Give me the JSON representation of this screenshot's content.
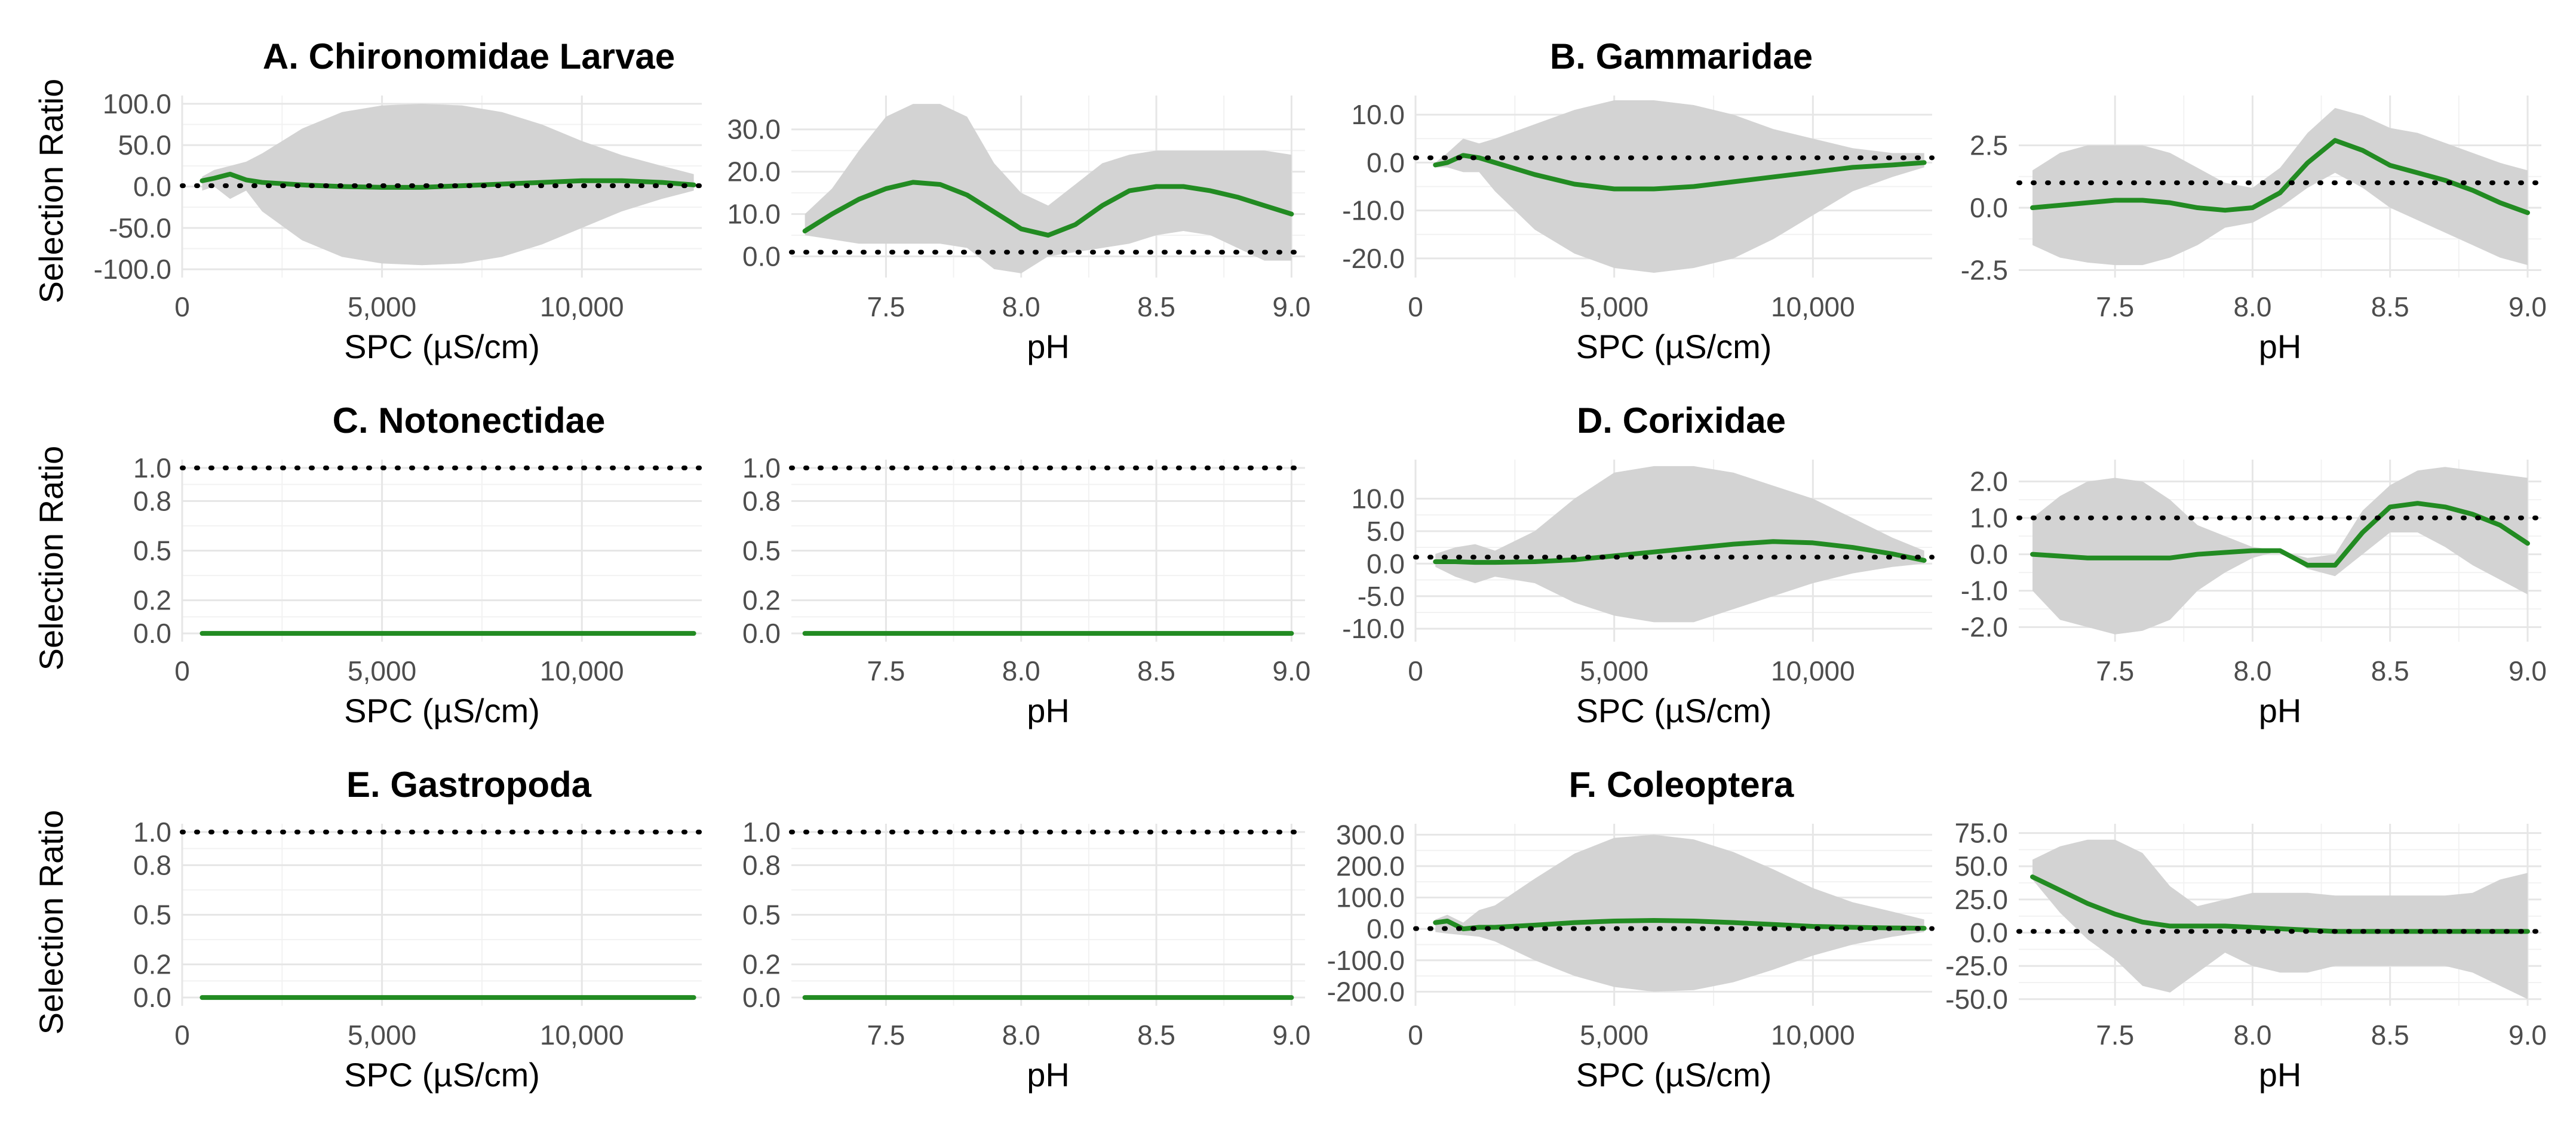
{
  "figure": {
    "colors": {
      "line": "#228b22",
      "ribbon": "#d3d3d3",
      "grid_major": "#e6e6e6",
      "grid_minor": "#f2f2f2",
      "reference": "#000000",
      "tick_text": "#4d4d4d"
    },
    "ylabel": "Selection Ratio"
  },
  "chart_data": [
    {
      "id": "A",
      "title": "A. Chironomidae Larvae",
      "type": "line",
      "variable": "SPC",
      "xlabel": "SPC (µS/cm)",
      "ylabel": "Selection Ratio",
      "xlim": [
        0,
        13000
      ],
      "ylim": [
        -110,
        110
      ],
      "xticks": [
        0,
        5000,
        10000
      ],
      "xtick_labels": [
        "0",
        "5,000",
        "10,000"
      ],
      "yticks": [
        -100,
        -50,
        0,
        50,
        100
      ],
      "ytick_labels": [
        "-100.0",
        "-50.0",
        "0.0",
        "50.0",
        "100.0"
      ],
      "reference_line": 1,
      "x": [
        500,
        800,
        1200,
        1600,
        2000,
        3000,
        4000,
        5000,
        6000,
        7000,
        8000,
        9000,
        10000,
        11000,
        12000,
        12800
      ],
      "y": [
        7,
        10,
        15,
        8,
        5,
        2,
        0,
        -1,
        -1,
        1,
        3,
        5,
        7,
        7,
        5,
        2
      ],
      "lower": [
        -5,
        0,
        -15,
        -5,
        -30,
        -65,
        -85,
        -93,
        -95,
        -93,
        -85,
        -70,
        -50,
        -30,
        -15,
        -5
      ],
      "upper": [
        12,
        20,
        25,
        30,
        40,
        70,
        90,
        98,
        100,
        98,
        90,
        75,
        55,
        38,
        25,
        15
      ]
    },
    {
      "id": "A-pH",
      "title": "",
      "type": "line",
      "variable": "pH",
      "xlabel": "pH",
      "ylabel": "",
      "xlim": [
        7.15,
        9.05
      ],
      "ylim": [
        -5,
        38
      ],
      "xticks": [
        7.5,
        8.0,
        8.5,
        9.0
      ],
      "xtick_labels": [
        "7.5",
        "8.0",
        "8.5",
        "9.0"
      ],
      "yticks": [
        0,
        10,
        20,
        30
      ],
      "ytick_labels": [
        "0.0",
        "10.0",
        "20.0",
        "30.0"
      ],
      "reference_line": 1,
      "x": [
        7.2,
        7.3,
        7.4,
        7.5,
        7.6,
        7.7,
        7.8,
        7.9,
        8.0,
        8.1,
        8.2,
        8.3,
        8.4,
        8.5,
        8.6,
        8.7,
        8.8,
        8.9,
        9.0
      ],
      "y": [
        6,
        10,
        13.5,
        16,
        17.5,
        17,
        14.5,
        10.5,
        6.5,
        5,
        7.5,
        12,
        15.5,
        16.5,
        16.5,
        15.5,
        14,
        12,
        10
      ],
      "lower": [
        5,
        4,
        3,
        3,
        3,
        3,
        2,
        -3,
        -4,
        0,
        1,
        2,
        3,
        5,
        6,
        5,
        2,
        -1,
        -1
      ],
      "upper": [
        10,
        16,
        25,
        33,
        36,
        36,
        33,
        22,
        15,
        12,
        17,
        22,
        24,
        25,
        25,
        25,
        25,
        25,
        24
      ]
    },
    {
      "id": "B",
      "title": "B. Gammaridae",
      "type": "line",
      "variable": "SPC",
      "xlabel": "SPC (µS/cm)",
      "ylabel": "",
      "xlim": [
        0,
        13000
      ],
      "ylim": [
        -24,
        14
      ],
      "xticks": [
        0,
        5000,
        10000
      ],
      "xtick_labels": [
        "0",
        "5,000",
        "10,000"
      ],
      "yticks": [
        -20,
        -10,
        0,
        10
      ],
      "ytick_labels": [
        "-20.0",
        "-10.0",
        "0.0",
        "10.0"
      ],
      "reference_line": 1,
      "x": [
        500,
        800,
        1200,
        1600,
        2000,
        3000,
        4000,
        5000,
        6000,
        7000,
        8000,
        9000,
        10000,
        11000,
        12000,
        12800
      ],
      "y": [
        -0.5,
        0,
        1.5,
        1,
        0,
        -2.5,
        -4.5,
        -5.5,
        -5.5,
        -5,
        -4,
        -3,
        -2,
        -1,
        -0.5,
        0
      ],
      "lower": [
        -1,
        -1,
        -2,
        -2,
        -6,
        -14,
        -19,
        -22,
        -23,
        -22,
        -20,
        -16,
        -11,
        -6,
        -3,
        -1
      ],
      "upper": [
        0,
        2,
        5,
        4,
        5,
        8,
        11,
        13,
        13,
        12,
        10,
        7,
        5,
        3,
        2,
        2
      ]
    },
    {
      "id": "B-pH",
      "title": "",
      "type": "line",
      "variable": "pH",
      "xlabel": "pH",
      "ylabel": "",
      "xlim": [
        7.15,
        9.05
      ],
      "ylim": [
        -2.8,
        4.5
      ],
      "xticks": [
        7.5,
        8.0,
        8.5,
        9.0
      ],
      "xtick_labels": [
        "7.5",
        "8.0",
        "8.5",
        "9.0"
      ],
      "yticks": [
        -2.5,
        0,
        2.5
      ],
      "ytick_labels": [
        "-2.5",
        "0.0",
        "2.5"
      ],
      "reference_line": 1,
      "x": [
        7.2,
        7.3,
        7.4,
        7.5,
        7.6,
        7.7,
        7.8,
        7.9,
        8.0,
        8.1,
        8.2,
        8.3,
        8.4,
        8.5,
        8.6,
        8.7,
        8.8,
        8.9,
        9.0
      ],
      "y": [
        0,
        0.1,
        0.2,
        0.3,
        0.3,
        0.2,
        0,
        -0.1,
        0,
        0.6,
        1.8,
        2.7,
        2.3,
        1.7,
        1.4,
        1.1,
        0.7,
        0.2,
        -0.2
      ],
      "lower": [
        -1.5,
        -2,
        -2.2,
        -2.3,
        -2.3,
        -2,
        -1.5,
        -0.8,
        -0.6,
        0,
        0.8,
        1.4,
        0.8,
        0,
        -0.5,
        -1,
        -1.5,
        -2,
        -2.3
      ],
      "upper": [
        1.5,
        2.2,
        2.5,
        2.5,
        2.5,
        2.2,
        1.6,
        1,
        0.8,
        1.6,
        3,
        4,
        3.7,
        3.2,
        3,
        2.6,
        2.2,
        1.8,
        1.5
      ]
    },
    {
      "id": "C",
      "title": "C. Notonectidae",
      "type": "line",
      "variable": "SPC",
      "xlabel": "SPC (µS/cm)",
      "ylabel": "Selection Ratio",
      "xlim": [
        0,
        13000
      ],
      "ylim": [
        -0.05,
        1.05
      ],
      "xticks": [
        0,
        5000,
        10000
      ],
      "xtick_labels": [
        "0",
        "5,000",
        "10,000"
      ],
      "yticks": [
        0,
        0.2,
        0.5,
        0.8,
        1.0
      ],
      "ytick_labels": [
        "0.0",
        "0.2",
        "0.5",
        "0.8",
        "1.0"
      ],
      "reference_line": 1,
      "x": [
        500,
        12800
      ],
      "y": [
        0,
        0
      ],
      "lower": [],
      "upper": []
    },
    {
      "id": "C-pH",
      "title": "",
      "type": "line",
      "variable": "pH",
      "xlabel": "pH",
      "ylabel": "",
      "xlim": [
        7.15,
        9.05
      ],
      "ylim": [
        -0.05,
        1.05
      ],
      "xticks": [
        7.5,
        8.0,
        8.5,
        9.0
      ],
      "xtick_labels": [
        "7.5",
        "8.0",
        "8.5",
        "9.0"
      ],
      "yticks": [
        0,
        0.2,
        0.5,
        0.8,
        1.0
      ],
      "ytick_labels": [
        "0.0",
        "0.2",
        "0.5",
        "0.8",
        "1.0"
      ],
      "reference_line": 1,
      "x": [
        7.2,
        9.0
      ],
      "y": [
        0,
        0
      ],
      "lower": [],
      "upper": []
    },
    {
      "id": "D",
      "title": "D. Corixidae",
      "type": "line",
      "variable": "SPC",
      "xlabel": "SPC (µS/cm)",
      "ylabel": "",
      "xlim": [
        0,
        13000
      ],
      "ylim": [
        -12,
        16
      ],
      "xticks": [
        0,
        5000,
        10000
      ],
      "xtick_labels": [
        "0",
        "5,000",
        "10,000"
      ],
      "yticks": [
        -10,
        -5,
        0,
        5,
        10
      ],
      "ytick_labels": [
        "-10.0",
        "-5.0",
        "0.0",
        "5.0",
        "10.0"
      ],
      "reference_line": 1,
      "x": [
        500,
        1000,
        1500,
        2000,
        3000,
        4000,
        5000,
        6000,
        7000,
        8000,
        9000,
        10000,
        11000,
        12000,
        12800
      ],
      "y": [
        0.3,
        0.3,
        0.2,
        0.2,
        0.3,
        0.6,
        1.2,
        1.8,
        2.4,
        3,
        3.4,
        3.2,
        2.5,
        1.5,
        0.5
      ],
      "lower": [
        -0.5,
        -2,
        -3,
        -2,
        -3,
        -6,
        -8,
        -9,
        -9,
        -7,
        -5,
        -3,
        -1.5,
        -0.5,
        0
      ],
      "upper": [
        1.5,
        2.5,
        3,
        2,
        5,
        10,
        14,
        15,
        15,
        14,
        12,
        10,
        7,
        4,
        2
      ]
    },
    {
      "id": "D-pH",
      "title": "",
      "type": "line",
      "variable": "pH",
      "xlabel": "pH",
      "ylabel": "",
      "xlim": [
        7.15,
        9.05
      ],
      "ylim": [
        -2.4,
        2.6
      ],
      "xticks": [
        7.5,
        8.0,
        8.5,
        9.0
      ],
      "xtick_labels": [
        "7.5",
        "8.0",
        "8.5",
        "9.0"
      ],
      "yticks": [
        -2,
        -1,
        0,
        1,
        2
      ],
      "ytick_labels": [
        "-2.0",
        "-1.0",
        "0.0",
        "1.0",
        "2.0"
      ],
      "reference_line": 1,
      "x": [
        7.2,
        7.3,
        7.4,
        7.5,
        7.6,
        7.7,
        7.8,
        7.9,
        8.0,
        8.1,
        8.2,
        8.3,
        8.4,
        8.5,
        8.6,
        8.7,
        8.8,
        8.9,
        9.0
      ],
      "y": [
        0,
        -0.05,
        -0.1,
        -0.1,
        -0.1,
        -0.1,
        0,
        0.05,
        0.1,
        0.1,
        -0.3,
        -0.3,
        0.6,
        1.3,
        1.4,
        1.3,
        1.1,
        0.8,
        0.3
      ],
      "lower": [
        -1,
        -1.8,
        -2,
        -2.2,
        -2.1,
        -1.8,
        -1,
        -0.5,
        -0.1,
        0.1,
        -0.4,
        -0.6,
        0,
        0.6,
        0.6,
        0.2,
        -0.3,
        -0.7,
        -1.1
      ],
      "upper": [
        1,
        1.6,
        2,
        2.1,
        2,
        1.5,
        0.8,
        0.5,
        0.2,
        0.1,
        -0.1,
        0,
        1.2,
        1.9,
        2.3,
        2.4,
        2.3,
        2.2,
        2.1
      ]
    },
    {
      "id": "E",
      "title": "E. Gastropoda",
      "type": "line",
      "variable": "SPC",
      "xlabel": "SPC (µS/cm)",
      "ylabel": "Selection Ratio",
      "xlim": [
        0,
        13000
      ],
      "ylim": [
        -0.05,
        1.05
      ],
      "xticks": [
        0,
        5000,
        10000
      ],
      "xtick_labels": [
        "0",
        "5,000",
        "10,000"
      ],
      "yticks": [
        0,
        0.2,
        0.5,
        0.8,
        1.0
      ],
      "ytick_labels": [
        "0.0",
        "0.2",
        "0.5",
        "0.8",
        "1.0"
      ],
      "reference_line": 1,
      "x": [
        500,
        12800
      ],
      "y": [
        0,
        0
      ],
      "lower": [],
      "upper": []
    },
    {
      "id": "E-pH",
      "title": "",
      "type": "line",
      "variable": "pH",
      "xlabel": "pH",
      "ylabel": "",
      "xlim": [
        7.15,
        9.05
      ],
      "ylim": [
        -0.05,
        1.05
      ],
      "xticks": [
        7.5,
        8.0,
        8.5,
        9.0
      ],
      "xtick_labels": [
        "7.5",
        "8.0",
        "8.5",
        "9.0"
      ],
      "yticks": [
        0,
        0.2,
        0.5,
        0.8,
        1.0
      ],
      "ytick_labels": [
        "0.0",
        "0.2",
        "0.5",
        "0.8",
        "1.0"
      ],
      "reference_line": 1,
      "x": [
        7.2,
        9.0
      ],
      "y": [
        0,
        0
      ],
      "lower": [],
      "upper": []
    },
    {
      "id": "F",
      "title": "F. Coleoptera",
      "type": "line",
      "variable": "SPC",
      "xlabel": "SPC (µS/cm)",
      "ylabel": "",
      "xlim": [
        0,
        13000
      ],
      "ylim": [
        -245,
        335
      ],
      "xticks": [
        0,
        5000,
        10000
      ],
      "xtick_labels": [
        "0",
        "5,000",
        "10,000"
      ],
      "yticks": [
        -200,
        -100,
        0,
        100,
        200,
        300
      ],
      "ytick_labels": [
        "-200.0",
        "-100.0",
        "0.0",
        "100.0",
        "200.0",
        "300.0"
      ],
      "reference_line": 1,
      "x": [
        500,
        800,
        1200,
        1600,
        2000,
        3000,
        4000,
        5000,
        6000,
        7000,
        8000,
        9000,
        10000,
        11000,
        12000,
        12800
      ],
      "y": [
        20,
        25,
        0,
        5,
        5,
        12,
        20,
        25,
        27,
        25,
        20,
        14,
        8,
        5,
        3,
        2
      ],
      "lower": [
        -10,
        -15,
        -20,
        -25,
        -40,
        -100,
        -150,
        -185,
        -200,
        -195,
        -170,
        -130,
        -85,
        -50,
        -25,
        -10
      ],
      "upper": [
        30,
        45,
        20,
        60,
        75,
        160,
        240,
        290,
        300,
        285,
        245,
        190,
        130,
        85,
        55,
        30
      ]
    },
    {
      "id": "F-pH",
      "title": "",
      "type": "line",
      "variable": "pH",
      "xlabel": "pH",
      "ylabel": "",
      "xlim": [
        7.15,
        9.05
      ],
      "ylim": [
        -55,
        82
      ],
      "xticks": [
        7.5,
        8.0,
        8.5,
        9.0
      ],
      "xtick_labels": [
        "7.5",
        "8.0",
        "8.5",
        "9.0"
      ],
      "yticks": [
        -50,
        -25,
        0,
        25,
        50,
        75
      ],
      "ytick_labels": [
        "-50.0",
        "-25.0",
        "0.0",
        "25.0",
        "50.0",
        "75.0"
      ],
      "reference_line": 1,
      "x": [
        7.2,
        7.3,
        7.4,
        7.5,
        7.6,
        7.7,
        7.8,
        7.9,
        8.0,
        8.1,
        8.2,
        8.3,
        8.4,
        8.5,
        8.6,
        8.7,
        8.8,
        8.9,
        9.0
      ],
      "y": [
        42,
        32,
        22,
        14,
        8,
        5,
        5,
        5,
        4,
        3,
        2,
        1,
        1,
        1,
        1,
        1,
        1,
        1,
        1
      ],
      "lower": [
        40,
        15,
        -5,
        -20,
        -40,
        -45,
        -30,
        -15,
        -25,
        -30,
        -30,
        -25,
        -25,
        -25,
        -25,
        -25,
        -30,
        -40,
        -50
      ],
      "upper": [
        55,
        65,
        70,
        70,
        60,
        35,
        20,
        25,
        30,
        30,
        30,
        28,
        28,
        28,
        28,
        28,
        30,
        40,
        45
      ]
    }
  ]
}
